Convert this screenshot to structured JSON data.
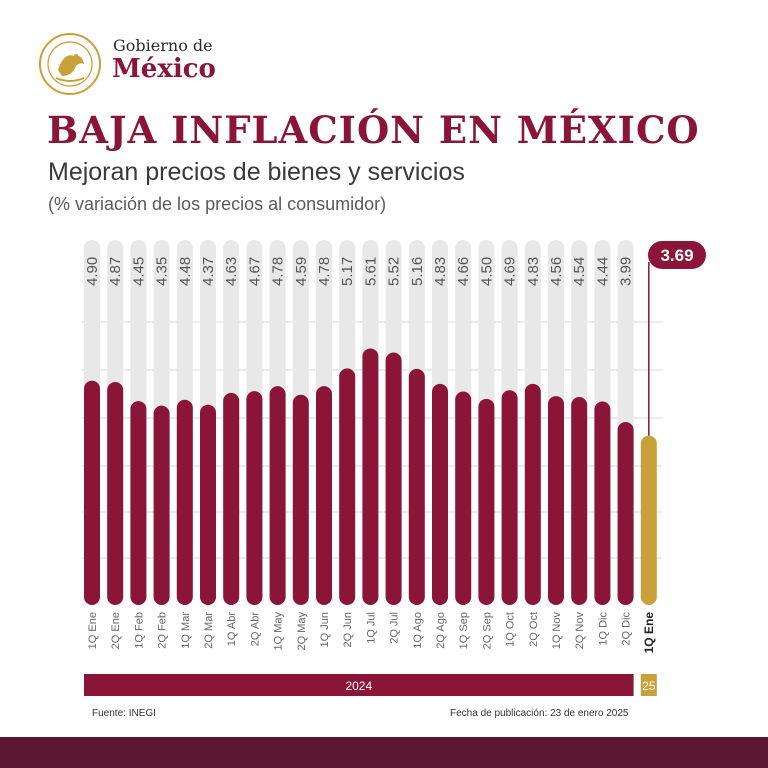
{
  "brand": {
    "line1": "Gobierno de",
    "line2": "México"
  },
  "title": "BAJA INFLACIÓN EN MÉXICO",
  "subtitle": "Mejoran precios de bienes y servicios",
  "subtitle2": "(% variación de los precios al consumidor)",
  "colors": {
    "primary": "#8a1538",
    "accent": "#c9a03a",
    "track": "#e8e8e8",
    "footer": "#5c1730"
  },
  "chart_data": {
    "type": "bar",
    "categories": [
      "1Q Ene",
      "2Q Ene",
      "1Q Feb",
      "2Q Feb",
      "1Q Mar",
      "2Q Mar",
      "1Q Abr",
      "2Q Abr",
      "1Q May",
      "2Q May",
      "1Q Jun",
      "2Q Jun",
      "1Q Jul",
      "2Q Jul",
      "1Q Ago",
      "2Q Ago",
      "1Q Sep",
      "2Q Sep",
      "1Q Oct",
      "2Q Oct",
      "1Q Nov",
      "2Q Nov",
      "1Q Dic",
      "2Q Dic",
      "1Q Ene"
    ],
    "values": [
      4.9,
      4.87,
      4.45,
      4.35,
      4.48,
      4.37,
      4.63,
      4.67,
      4.78,
      4.59,
      4.78,
      5.17,
      5.61,
      5.52,
      5.16,
      4.83,
      4.66,
      4.5,
      4.69,
      4.83,
      4.56,
      4.54,
      4.44,
      3.99,
      3.69
    ],
    "value_labels": [
      "4.90",
      "4.87",
      "4.45",
      "4.35",
      "4.48",
      "4.37",
      "4.63",
      "4.67",
      "4.78",
      "4.59",
      "4.78",
      "5.17",
      "5.61",
      "5.52",
      "5.16",
      "4.83",
      "4.66",
      "4.50",
      "4.69",
      "4.83",
      "4.56",
      "4.54",
      "4.44",
      "3.99",
      "3.69"
    ],
    "highlight_index": 24,
    "year_labels": [
      {
        "label": "2024",
        "from": 0,
        "to": 23
      },
      {
        "label": "25",
        "from": 24,
        "to": 24
      }
    ],
    "ylim": [
      0,
      8
    ],
    "grid": true
  },
  "footer": {
    "source": "Fuente: INEGI",
    "date": "Fecha de publicación: 23 de enero 2025"
  }
}
